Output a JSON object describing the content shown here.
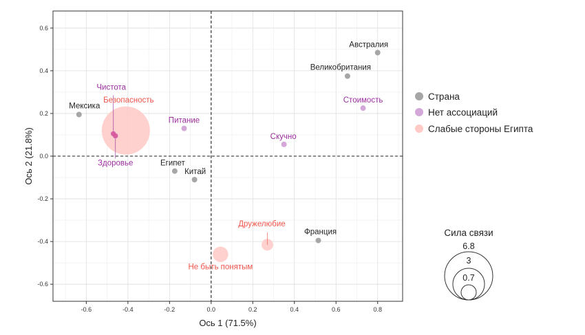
{
  "chart_data": {
    "type": "scatter",
    "xlabel": "Ось 1 (71.5%)",
    "ylabel": "Ось 2 (21.8%)",
    "xlim": [
      -0.76,
      0.92
    ],
    "ylim": [
      -0.68,
      0.68
    ],
    "x_ticks": [
      "-0.6",
      "-0.4",
      "-0.2",
      "0.0",
      "0.2",
      "0.4",
      "0.6",
      "0.8"
    ],
    "y_ticks": [
      "0.6",
      "0.4",
      "0.2",
      "0.0",
      "-0.2",
      "-0.4",
      "-0.6"
    ],
    "grid": true,
    "reference_lines": {
      "x": 0,
      "y": 0,
      "style": "dashed"
    },
    "legend": {
      "placement": "right",
      "entries": [
        {
          "name": "Страна",
          "color": "#a6a6a6"
        },
        {
          "name": "Нет ассоциаций",
          "color": "#d3a8d8"
        },
        {
          "name": "Слабые стороны Египта",
          "color": "#ffc9c5"
        }
      ]
    },
    "size_legend": {
      "title": "Сила связи",
      "values": [
        {
          "label": "6.8",
          "value": 6.8
        },
        {
          "label": "3",
          "value": 3
        },
        {
          "label": "0.7",
          "value": 0.7
        }
      ]
    },
    "series": [
      {
        "name": "Страна",
        "color": "#a6a6a6",
        "label_color": "#222222",
        "points": [
          {
            "label": "Австралия",
            "x": 0.8,
            "y": 0.485
          },
          {
            "label": "Великобритания",
            "x": 0.655,
            "y": 0.375
          },
          {
            "label": "Мексика",
            "x": -0.635,
            "y": 0.195
          },
          {
            "label": "Египет",
            "x": -0.175,
            "y": -0.07
          },
          {
            "label": "Китай",
            "x": -0.08,
            "y": -0.11
          },
          {
            "label": "Франция",
            "x": 0.515,
            "y": -0.395
          }
        ]
      },
      {
        "name": "Нет ассоциаций",
        "color": "#d3a8d8",
        "label_color": "#9b2f9e",
        "points": [
          {
            "label": "Чистота",
            "x": -0.47,
            "y": 0.105
          },
          {
            "label": "Здоровье",
            "x": -0.46,
            "y": 0.095
          },
          {
            "label": "Питание",
            "x": -0.13,
            "y": 0.13
          },
          {
            "label": "Скучно",
            "x": 0.35,
            "y": 0.055
          },
          {
            "label": "Стоимость",
            "x": 0.73,
            "y": 0.225
          }
        ]
      },
      {
        "name": "Слабые стороны Египта",
        "color": "#ffc9c5",
        "label_color": "#f0554a",
        "points": [
          {
            "label": "Безопасность",
            "x": -0.41,
            "y": 0.12,
            "strength": 6.8
          },
          {
            "label": "Дружелюбие",
            "x": 0.27,
            "y": -0.415,
            "strength": 0.4
          },
          {
            "label": "Не быть понятым",
            "x": 0.045,
            "y": -0.46,
            "strength": 0.7
          }
        ]
      }
    ]
  }
}
